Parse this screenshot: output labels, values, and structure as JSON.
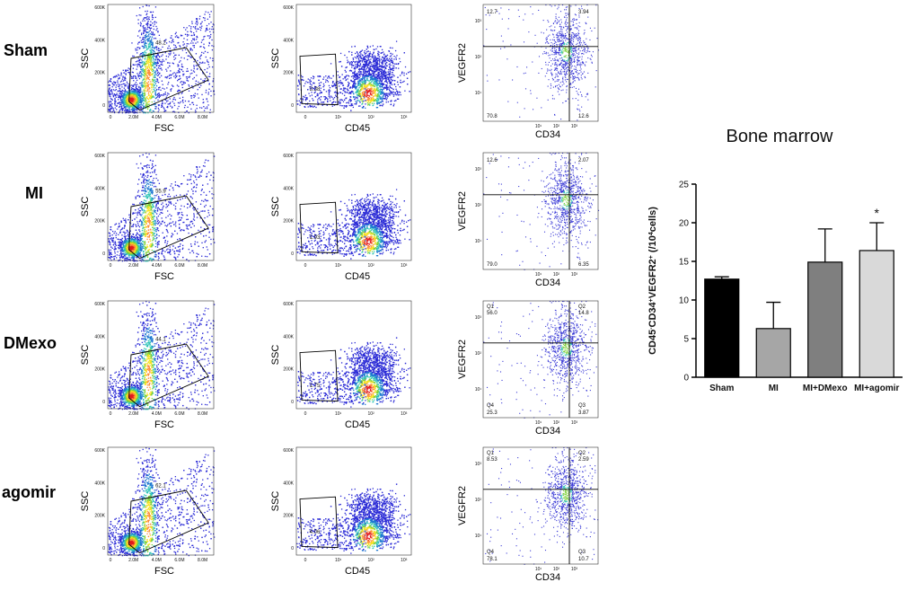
{
  "rows": [
    {
      "label": "Sham",
      "fsc": {
        "gate_value": "48.2",
        "ticks_x": [
          "0",
          "2.0M",
          "4.0M",
          "6.0M",
          "8.0M"
        ],
        "ticks_y": [
          "0",
          "200K",
          "400K",
          "600K"
        ],
        "xlabel": "FSC",
        "ylabel": "SSC"
      },
      "cd45": {
        "gate_value": "3.38",
        "ticks_y": [
          "0",
          "200K",
          "400K",
          "600K"
        ],
        "xlabel": "CD45",
        "ylabel": "SSC"
      },
      "quad": {
        "q1_label": "",
        "q2_label": "",
        "q3_label": "",
        "q4_label": "",
        "q1": "12.7",
        "q2": "3.94",
        "q3": "12.6",
        "q4": "70.8",
        "xlabel": "CD34",
        "ylabel": "VEGFR2"
      }
    },
    {
      "label": "MI",
      "fsc": {
        "gate_value": "55.9",
        "ticks_x": [
          "0",
          "2.0M",
          "4.0M",
          "6.0M",
          "8.0M"
        ],
        "ticks_y": [
          "0",
          "200K",
          "400K",
          "600K"
        ],
        "xlabel": "FSC",
        "ylabel": "SSC"
      },
      "cd45": {
        "gate_value": "1.93",
        "ticks_y": [
          "0",
          "200K",
          "400K",
          "600K"
        ],
        "xlabel": "CD45",
        "ylabel": "SSC"
      },
      "quad": {
        "q1_label": "",
        "q2_label": "",
        "q3_label": "",
        "q4_label": "",
        "q1": "12.6",
        "q2": "2.07",
        "q3": "6.35",
        "q4": "79.0",
        "xlabel": "CD34",
        "ylabel": "VEGFR2"
      }
    },
    {
      "label": "DMexo",
      "fsc": {
        "gate_value": "44.1",
        "ticks_x": [
          "0",
          "2.0M",
          "4.0M",
          "6.0M",
          "8.0M"
        ],
        "ticks_y": [
          "0",
          "200K",
          "400K",
          "600K"
        ],
        "xlabel": "FSC",
        "ylabel": "SSC"
      },
      "cd45": {
        "gate_value": "1.75",
        "ticks_y": [
          "0",
          "200K",
          "400K",
          "600K"
        ],
        "xlabel": "CD45",
        "ylabel": "SSC"
      },
      "quad": {
        "q1_label": "Q1",
        "q2_label": "Q2",
        "q3_label": "Q3",
        "q4_label": "Q4",
        "q1": "56.0",
        "q2": "14.8",
        "q3": "3.87",
        "q4": "25.3",
        "xlabel": "CD34",
        "ylabel": "VEGFR2"
      }
    },
    {
      "label": "agomir",
      "fsc": {
        "gate_value": "62.1",
        "ticks_x": [
          "0",
          "2.0M",
          "4.0M",
          "6.0M",
          "8.0M"
        ],
        "ticks_y": [
          "0",
          "200K",
          "400K",
          "600K"
        ],
        "xlabel": "FSC",
        "ylabel": "SSC"
      },
      "cd45": {
        "gate_value": "4.06",
        "ticks_y": [
          "0",
          "200K",
          "400K",
          "600K"
        ],
        "xlabel": "CD45",
        "ylabel": "SSC"
      },
      "quad": {
        "q1_label": "Q1",
        "q2_label": "Q2",
        "q3_label": "Q3",
        "q4_label": "Q4",
        "q1": "8.53",
        "q2": "2.59",
        "q3": "10.7",
        "q4": "78.1",
        "xlabel": "CD34",
        "ylabel": "VEGFR2"
      }
    }
  ],
  "log_ticks": {
    "x": [
      "0",
      "10¹",
      "10²",
      "10³"
    ],
    "y": [
      "10¹",
      "10²",
      "10³"
    ]
  },
  "chart_data": {
    "type": "bar",
    "title": "Bone marrow",
    "categories": [
      "Sham",
      "MI",
      "MI+DMexo",
      "MI+agomir"
    ],
    "values": [
      12.7,
      6.3,
      14.9,
      16.4
    ],
    "errors": [
      0.3,
      3.4,
      4.3,
      3.6
    ],
    "significance": [
      "",
      "",
      "",
      "*"
    ],
    "ylabel_main": "CD45",
    "ylabel_sup1": "-",
    "ylabel_mid": "CD34",
    "ylabel_sup2": "+",
    "ylabel_end": "VEGFR2",
    "ylabel_sup3": "+",
    "ylabel_unit_open": " (/10",
    "ylabel_unit_sup": "4",
    "ylabel_unit_close": "cells)",
    "ylim": [
      0,
      25
    ],
    "yticks": [
      0,
      5,
      10,
      15,
      20,
      25
    ],
    "colors": [
      "#000000",
      "#a6a6a6",
      "#7f7f7f",
      "#d9d9d9"
    ]
  }
}
